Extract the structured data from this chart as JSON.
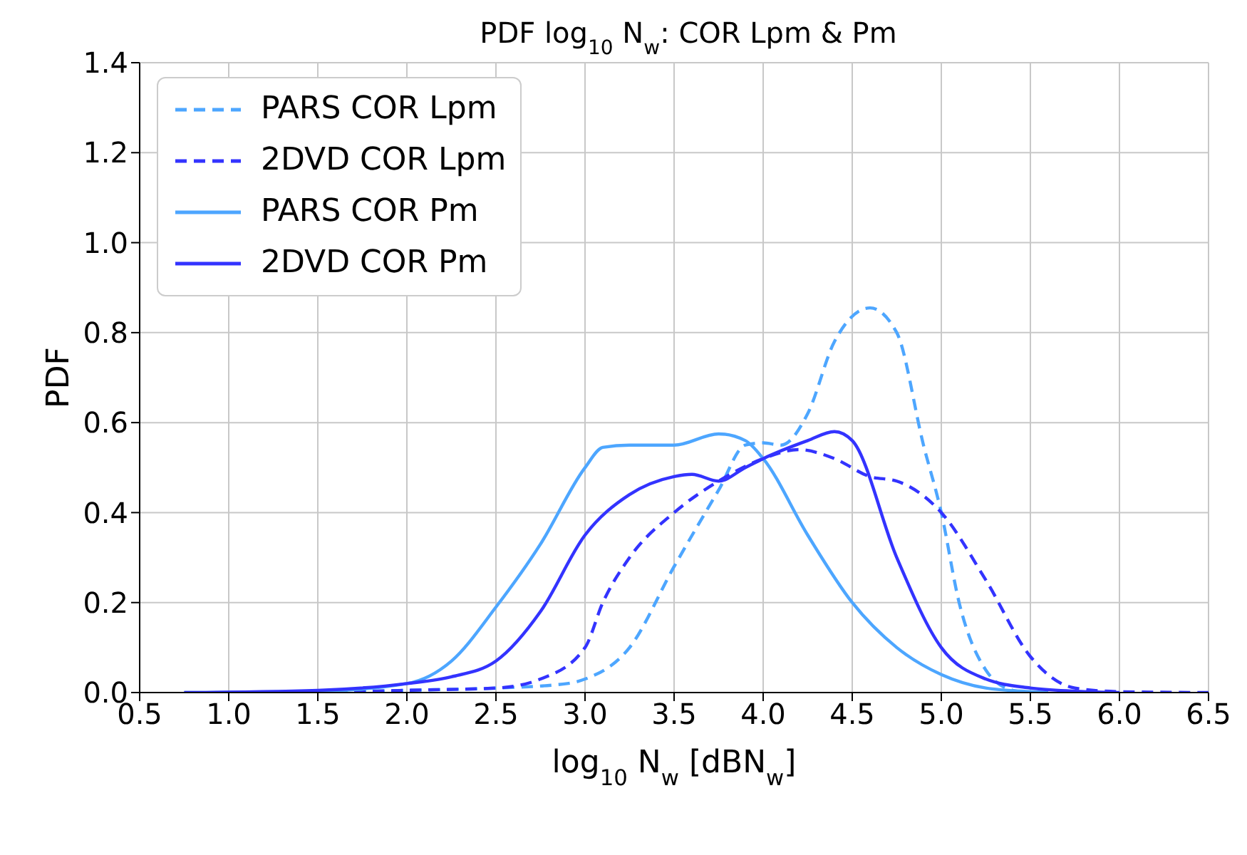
{
  "chart_data": {
    "type": "line",
    "title": "PDF log$_{10}$ N$_{w}$: COR Lpm & Pm",
    "xlabel": "log$_{10}$ N$_{w}$ [dBN$_{w}$]",
    "ylabel": "PDF",
    "xlim": [
      0.5,
      6.5
    ],
    "xticks": [
      {
        "value": 0.5,
        "label": "0.5"
      },
      {
        "value": 1,
        "label": "1.0"
      },
      {
        "value": 1.5,
        "label": "1.5"
      },
      {
        "value": 2,
        "label": "2.0"
      },
      {
        "value": 2.5,
        "label": "2.5"
      },
      {
        "value": 3,
        "label": "3.0"
      },
      {
        "value": 3.5,
        "label": "3.5"
      },
      {
        "value": 4,
        "label": "4.0"
      },
      {
        "value": 4.5,
        "label": "4.5"
      },
      {
        "value": 5,
        "label": "5.0"
      },
      {
        "value": 5.5,
        "label": "5.5"
      },
      {
        "value": 6,
        "label": "6.0"
      },
      {
        "value": 6.5,
        "label": "6.5"
      }
    ],
    "ylim": [
      0,
      1.4
    ],
    "yticks": [
      {
        "value": 0,
        "label": "0.0"
      },
      {
        "value": 0.2,
        "label": "0.2"
      },
      {
        "value": 0.4,
        "label": "0.4"
      },
      {
        "value": 0.6,
        "label": "0.6"
      },
      {
        "value": 0.8,
        "label": "0.8"
      },
      {
        "value": 1,
        "label": "1.0"
      },
      {
        "value": 1.2,
        "label": "1.2"
      },
      {
        "value": 1.4,
        "label": "1.4"
      }
    ],
    "grid": true,
    "legend": "top left",
    "marker": "none",
    "series": [
      {
        "name": "PARS COR Lpm",
        "color": "#4da6ff",
        "line_style": "dashed",
        "x": [
          1.5,
          2.0,
          2.5,
          2.9,
          3.0,
          3.25,
          3.5,
          3.75,
          3.9,
          4.0,
          4.1,
          4.25,
          4.4,
          4.6,
          4.75,
          4.9,
          5.0,
          5.1,
          5.25,
          5.4,
          5.5
        ],
        "values": [
          0,
          0.005,
          0.01,
          0.02,
          0.03,
          0.1,
          0.28,
          0.45,
          0.55,
          0.555,
          0.55,
          0.62,
          0.78,
          0.855,
          0.8,
          0.55,
          0.4,
          0.2,
          0.05,
          0.005,
          0
        ]
      },
      {
        "name": "2DVD COR Lpm",
        "color": "#3333ff",
        "line_style": "dashed",
        "x": [
          1.6,
          2.0,
          2.5,
          2.75,
          3.0,
          3.1,
          3.25,
          3.5,
          3.75,
          4.0,
          4.2,
          4.4,
          4.6,
          4.75,
          5.0,
          5.25,
          5.5,
          5.75,
          6.0,
          6.5
        ],
        "values": [
          0,
          0.005,
          0.01,
          0.03,
          0.1,
          0.2,
          0.3,
          0.4,
          0.47,
          0.52,
          0.54,
          0.52,
          0.48,
          0.47,
          0.4,
          0.25,
          0.08,
          0.01,
          0.002,
          0
        ]
      },
      {
        "name": "PARS COR Pm",
        "color": "#4da6ff",
        "line_style": "solid",
        "x": [
          0.75,
          1.5,
          2.0,
          2.25,
          2.5,
          2.75,
          3.0,
          3.1,
          3.25,
          3.5,
          3.75,
          3.9,
          4.0,
          4.25,
          4.5,
          4.75,
          5.0,
          5.25,
          5.5,
          5.6
        ],
        "values": [
          0,
          0.003,
          0.02,
          0.07,
          0.19,
          0.33,
          0.5,
          0.545,
          0.55,
          0.55,
          0.575,
          0.56,
          0.52,
          0.35,
          0.2,
          0.1,
          0.04,
          0.01,
          0.002,
          0
        ]
      },
      {
        "name": "2DVD COR Pm",
        "color": "#3333ff",
        "line_style": "solid",
        "x": [
          0.75,
          1.5,
          2.0,
          2.25,
          2.5,
          2.75,
          3.0,
          3.25,
          3.5,
          3.6,
          3.75,
          3.9,
          4.0,
          4.25,
          4.4,
          4.5,
          4.75,
          5.0,
          5.25,
          5.5,
          5.75,
          6.0
        ],
        "values": [
          0,
          0.005,
          0.02,
          0.035,
          0.07,
          0.18,
          0.35,
          0.44,
          0.48,
          0.485,
          0.47,
          0.5,
          0.52,
          0.56,
          0.58,
          0.56,
          0.3,
          0.1,
          0.03,
          0.01,
          0.003,
          0
        ]
      }
    ]
  }
}
